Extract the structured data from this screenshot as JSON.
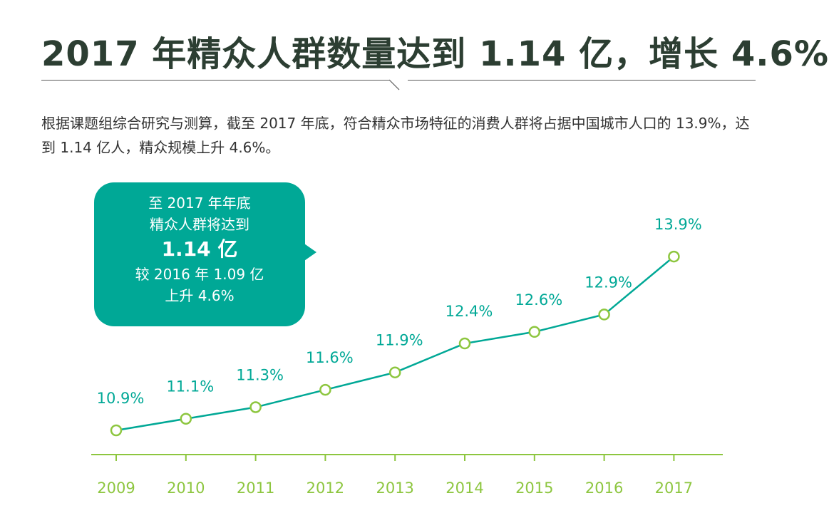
{
  "title": "2017 年精众人群数量达到 1.14 亿，增长 4.6%",
  "description": "根据课题组综合研究与测算，截至 2017 年底，符合精众市场特征的消费人群将占据中国城市人口的 13.9%，达到 1.14 亿人，精众规模上升 4.6%。",
  "callout": {
    "line1": "至 2017 年年底",
    "line2": "精众人群将达到",
    "highlight": "1.14 亿",
    "line3": "较 2016 年 1.09 亿",
    "line4": "上升 4.6%"
  },
  "colors": {
    "line": "#00a896",
    "marker": "#8dc63f",
    "label": "#00a896",
    "axis": "#8dc63f",
    "bubble": "#00a896"
  },
  "chart_data": {
    "type": "line",
    "categories": [
      "2009",
      "2010",
      "2011",
      "2012",
      "2013",
      "2014",
      "2015",
      "2016",
      "2017"
    ],
    "values": [
      10.9,
      11.1,
      11.3,
      11.6,
      11.9,
      12.4,
      12.6,
      12.9,
      13.9
    ],
    "labels": [
      "10.9%",
      "11.1%",
      "11.3%",
      "11.6%",
      "11.9%",
      "12.4%",
      "12.6%",
      "12.9%",
      "13.9%"
    ],
    "unit": "%"
  }
}
